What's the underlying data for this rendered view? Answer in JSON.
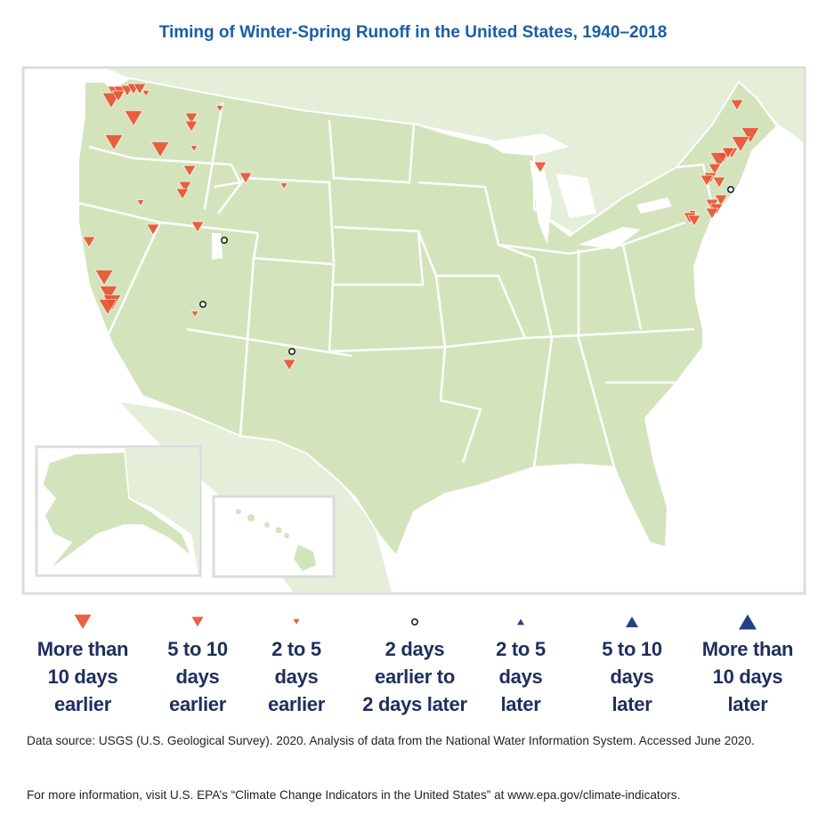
{
  "title": "Timing of Winter-Spring Runoff in the United States, 1940–2018",
  "colors": {
    "earlier": "#e8512f",
    "later": "#22418a",
    "land": "#d3e4bd",
    "neighbor_land": "#e4eed8",
    "frame": "#dcdcdc",
    "title": "#1b5ea6"
  },
  "legend": [
    {
      "label_lines": [
        "More than",
        "10 days",
        "earlier"
      ],
      "symbol": "triangle-down-large"
    },
    {
      "label_lines": [
        "5 to 10",
        "days",
        "earlier"
      ],
      "symbol": "triangle-down-medium"
    },
    {
      "label_lines": [
        "2 to 5",
        "days",
        "earlier"
      ],
      "symbol": "triangle-down-small"
    },
    {
      "label_lines": [
        "2 days",
        "earlier to",
        "2 days later"
      ],
      "symbol": "circle-open"
    },
    {
      "label_lines": [
        "2 to 5",
        "days",
        "later"
      ],
      "symbol": "triangle-up-small"
    },
    {
      "label_lines": [
        "5 to 10",
        "days",
        "later"
      ],
      "symbol": "triangle-up-medium"
    },
    {
      "label_lines": [
        "More than",
        "10 days",
        "later"
      ],
      "symbol": "triangle-up-large"
    }
  ],
  "footer": {
    "source": "Data source: USGS (U.S. Geological Survey). 2020. Analysis of data from the National Water Information System. Accessed June 2020.",
    "more_info": "For more information, visit U.S. EPA’s “Climate Change Indicators in the United States” at www.epa.gov/climate-indicators."
  }
}
